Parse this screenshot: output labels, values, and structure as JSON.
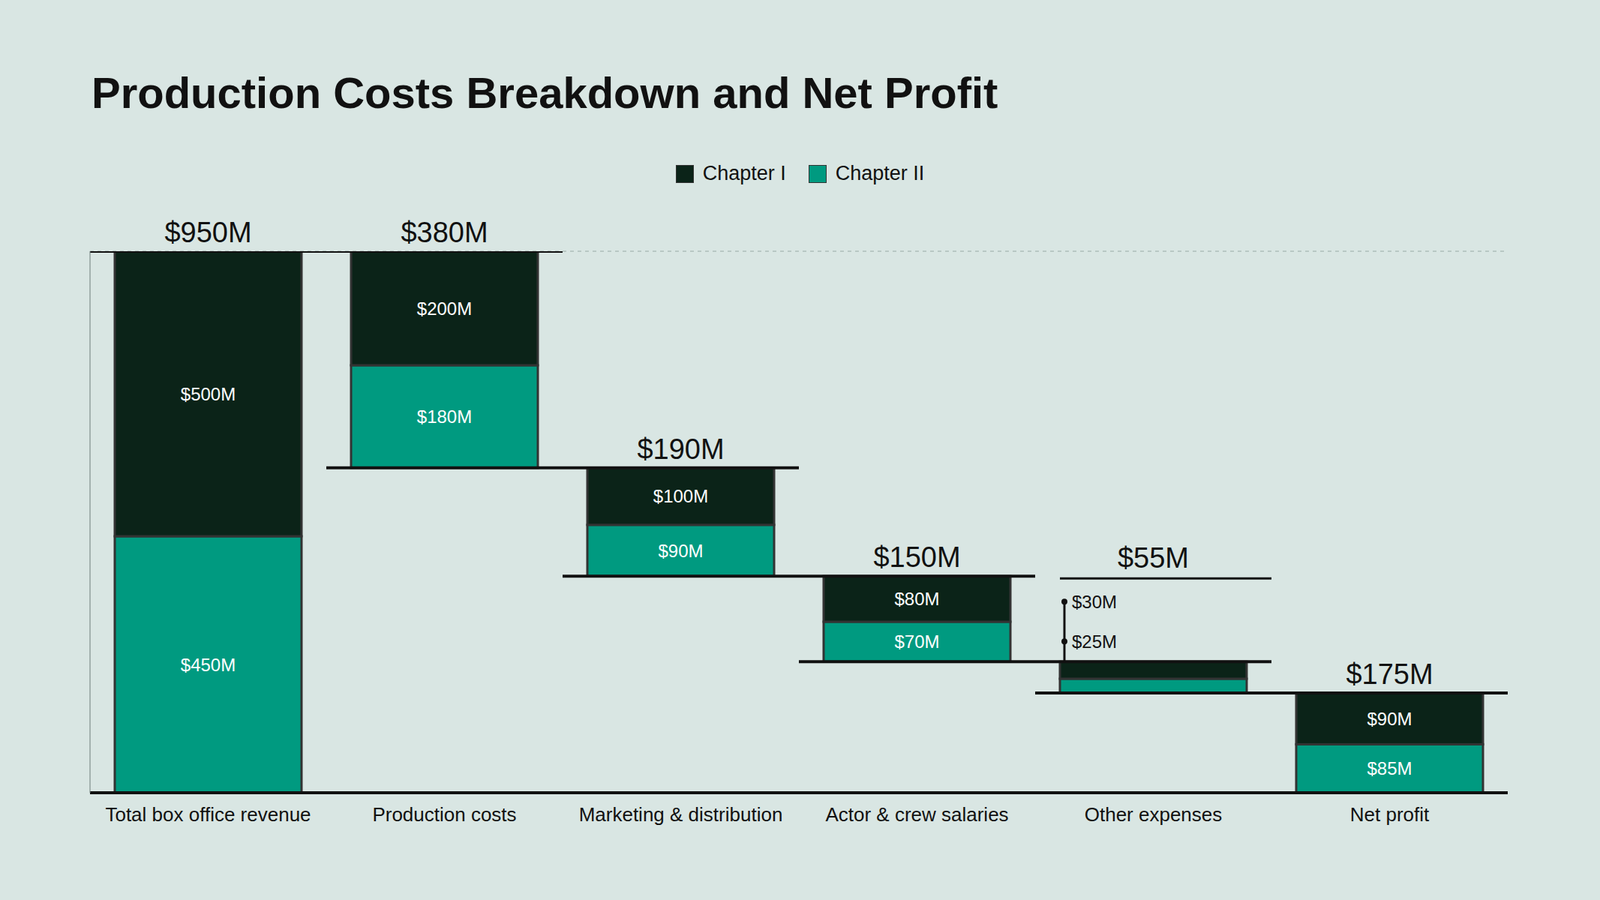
{
  "chart_data": {
    "type": "waterfall",
    "title": "Production Costs Breakdown and Net Profit",
    "categories": [
      "Total box office revenue",
      "Production costs",
      "Marketing & distribution",
      "Actor & crew salaries",
      "Other expenses",
      "Net profit"
    ],
    "series": [
      {
        "name": "Chapter I",
        "color": "#0b2318",
        "values": [
          500,
          200,
          100,
          80,
          30,
          90
        ],
        "value_labels": [
          "$500M",
          "$200M",
          "$100M",
          "$80M",
          "$30M",
          "$90M"
        ]
      },
      {
        "name": "Chapter II",
        "color": "#009a80",
        "values": [
          450,
          180,
          90,
          70,
          25,
          85
        ],
        "value_labels": [
          "$450M",
          "$180M",
          "$90M",
          "$70M",
          "$25M",
          "$85M"
        ]
      }
    ],
    "totals": {
      "values": [
        950,
        380,
        190,
        150,
        55,
        175
      ],
      "value_labels": [
        "$950M",
        "$380M",
        "$190M",
        "$150M",
        "$55M",
        "$175M"
      ]
    },
    "ylim": [
      0,
      950
    ],
    "yticks": [
      0,
      100,
      200,
      300,
      400,
      500,
      600,
      700,
      800,
      900
    ],
    "grid": true,
    "tick_labels": "x",
    "stacked": true,
    "data_labels": true,
    "legend": "top"
  }
}
